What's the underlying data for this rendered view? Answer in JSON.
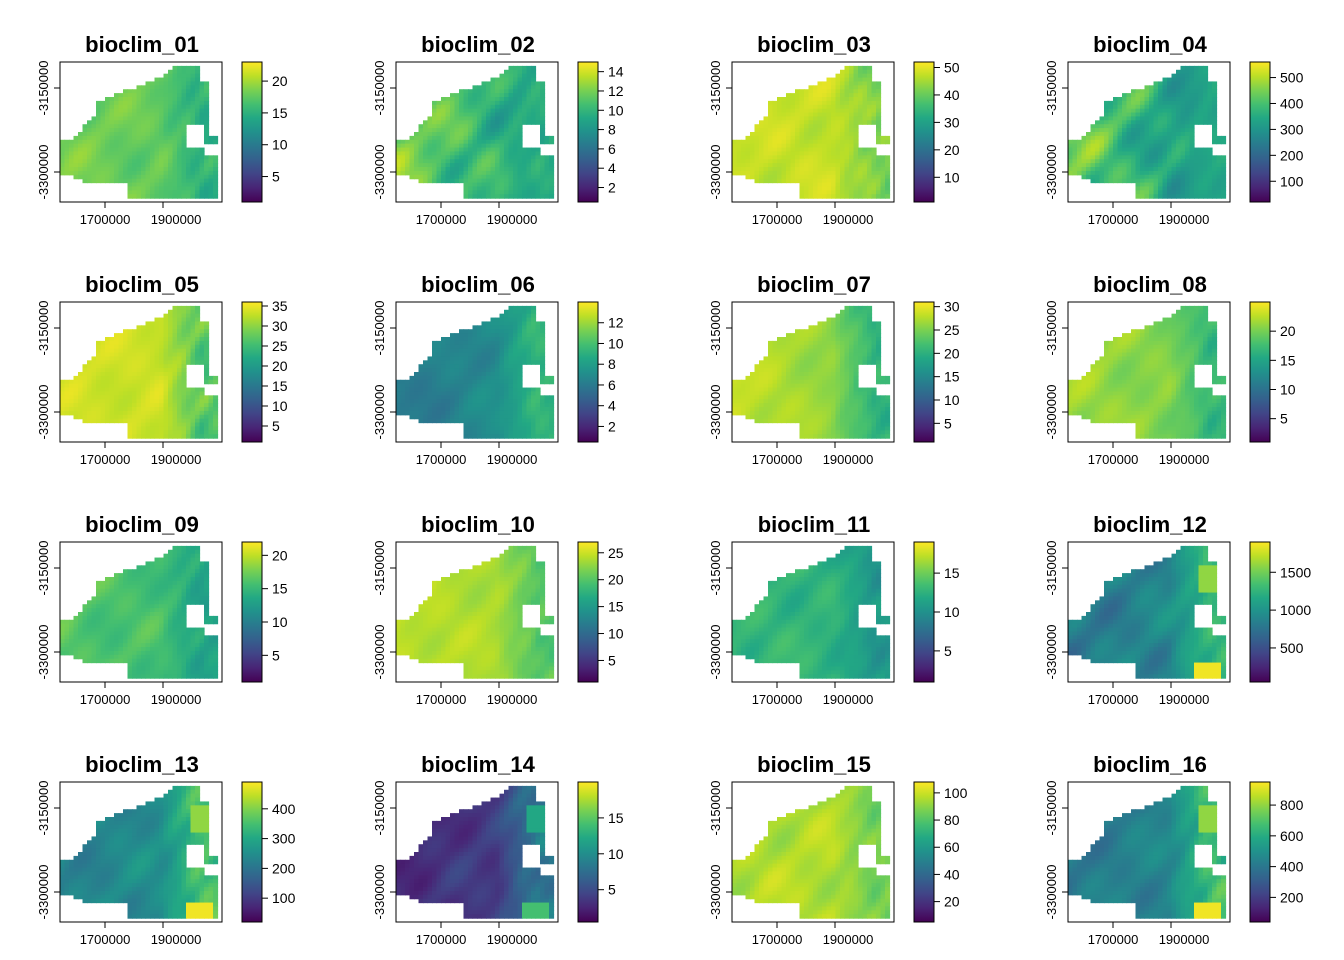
{
  "figure": {
    "x_ticks": [
      "1700000",
      "1900000"
    ],
    "y_ticks": [
      "-3150000",
      "-3300000"
    ]
  },
  "chart_data": [
    {
      "type": "heatmap",
      "title": "bioclim_01",
      "legend_ticks": [
        5,
        10,
        15,
        20
      ],
      "legend_range": [
        1,
        23
      ],
      "map_range": [
        0.72,
        0.86
      ],
      "gradient_from": "left",
      "gradient_strength": 0.05,
      "east_range": [
        0.55,
        0.72
      ],
      "hotspot": null
    },
    {
      "type": "heatmap",
      "title": "bioclim_02",
      "legend_ticks": [
        2,
        4,
        6,
        8,
        10,
        12,
        14
      ],
      "legend_range": [
        0.5,
        15
      ],
      "map_range": [
        0.65,
        0.95
      ],
      "gradient_from": "left",
      "gradient_strength": 0.25,
      "east_range": [
        0.55,
        0.68
      ],
      "hotspot": null
    },
    {
      "type": "heatmap",
      "title": "bioclim_03",
      "legend_ticks": [
        10,
        20,
        30,
        40,
        50
      ],
      "legend_range": [
        1,
        52
      ],
      "map_range": [
        0.86,
        0.97
      ],
      "gradient_from": "left",
      "gradient_strength": 0.0,
      "east_range": [
        0.7,
        0.9
      ],
      "hotspot": null
    },
    {
      "type": "heatmap",
      "title": "bioclim_04",
      "legend_ticks": [
        100,
        200,
        300,
        400,
        500
      ],
      "legend_range": [
        20,
        560
      ],
      "map_range": [
        0.62,
        0.96
      ],
      "gradient_from": "left",
      "gradient_strength": 0.34,
      "east_range": [
        0.55,
        0.64
      ],
      "hotspot": null
    },
    {
      "type": "heatmap",
      "title": "bioclim_05",
      "legend_ticks": [
        5,
        10,
        15,
        20,
        25,
        30,
        35
      ],
      "legend_range": [
        1,
        36
      ],
      "map_range": [
        0.88,
        0.97
      ],
      "gradient_from": "left",
      "gradient_strength": 0.0,
      "east_range": [
        0.62,
        0.84
      ],
      "hotspot": null
    },
    {
      "type": "heatmap",
      "title": "bioclim_06",
      "legend_ticks": [
        2,
        4,
        6,
        8,
        10,
        12
      ],
      "legend_range": [
        0.5,
        14
      ],
      "map_range": [
        0.33,
        0.45
      ],
      "gradient_from": "right",
      "gradient_strength": 0.15,
      "east_range": [
        0.58,
        0.72
      ],
      "hotspot": null
    },
    {
      "type": "heatmap",
      "title": "bioclim_07",
      "legend_ticks": [
        5,
        10,
        15,
        20,
        25,
        30
      ],
      "legend_range": [
        1,
        31
      ],
      "map_range": [
        0.88,
        0.97
      ],
      "gradient_from": "left",
      "gradient_strength": 0.15,
      "east_range": [
        0.58,
        0.72
      ],
      "hotspot": null
    },
    {
      "type": "heatmap",
      "title": "bioclim_08",
      "legend_ticks": [
        5,
        10,
        15,
        20
      ],
      "legend_range": [
        1,
        25
      ],
      "map_range": [
        0.8,
        0.92
      ],
      "gradient_from": "left",
      "gradient_strength": 0.08,
      "east_range": [
        0.6,
        0.74
      ],
      "hotspot": null
    },
    {
      "type": "heatmap",
      "title": "bioclim_09",
      "legend_ticks": [
        5,
        10,
        15,
        20
      ],
      "legend_range": [
        1,
        22
      ],
      "map_range": [
        0.66,
        0.8
      ],
      "gradient_from": "left",
      "gradient_strength": 0.05,
      "east_range": [
        0.5,
        0.66
      ],
      "hotspot": null
    },
    {
      "type": "heatmap",
      "title": "bioclim_10",
      "legend_ticks": [
        5,
        10,
        15,
        20,
        25
      ],
      "legend_range": [
        1,
        27
      ],
      "map_range": [
        0.86,
        0.95
      ],
      "gradient_from": "left",
      "gradient_strength": 0.05,
      "east_range": [
        0.66,
        0.8
      ],
      "hotspot": null
    },
    {
      "type": "heatmap",
      "title": "bioclim_11",
      "legend_ticks": [
        5,
        10,
        15
      ],
      "legend_range": [
        1,
        19
      ],
      "map_range": [
        0.6,
        0.74
      ],
      "gradient_from": "left",
      "gradient_strength": 0.04,
      "east_range": [
        0.46,
        0.6
      ],
      "hotspot": null
    },
    {
      "type": "heatmap",
      "title": "bioclim_12",
      "legend_ticks": [
        500,
        1000,
        1500
      ],
      "legend_range": [
        50,
        1900
      ],
      "map_range": [
        0.3,
        0.5
      ],
      "gradient_from": "right",
      "gradient_strength": 0.1,
      "east_range": [
        0.58,
        0.74
      ],
      "hotspot": 0.98
    },
    {
      "type": "heatmap",
      "title": "bioclim_13",
      "legend_ticks": [
        100,
        200,
        300,
        400
      ],
      "legend_range": [
        20,
        490
      ],
      "map_range": [
        0.36,
        0.52
      ],
      "gradient_from": "right",
      "gradient_strength": 0.08,
      "east_range": [
        0.6,
        0.82
      ],
      "hotspot": 0.98
    },
    {
      "type": "heatmap",
      "title": "bioclim_14",
      "legend_ticks": [
        5,
        10,
        15
      ],
      "legend_range": [
        0.5,
        20
      ],
      "map_range": [
        0.05,
        0.2
      ],
      "gradient_from": "right",
      "gradient_strength": 0.08,
      "east_range": [
        0.3,
        0.5
      ],
      "hotspot": 0.7
    },
    {
      "type": "heatmap",
      "title": "bioclim_15",
      "legend_ticks": [
        20,
        40,
        60,
        80,
        100
      ],
      "legend_range": [
        5,
        108
      ],
      "map_range": [
        0.82,
        0.95
      ],
      "gradient_from": "left",
      "gradient_strength": 0.0,
      "east_range": [
        0.72,
        0.86
      ],
      "hotspot": null
    },
    {
      "type": "heatmap",
      "title": "bioclim_16",
      "legend_ticks": [
        200,
        400,
        600,
        800
      ],
      "legend_range": [
        40,
        950
      ],
      "map_range": [
        0.33,
        0.48
      ],
      "gradient_from": "right",
      "gradient_strength": 0.08,
      "east_range": [
        0.58,
        0.8
      ],
      "hotspot": 0.98
    }
  ]
}
